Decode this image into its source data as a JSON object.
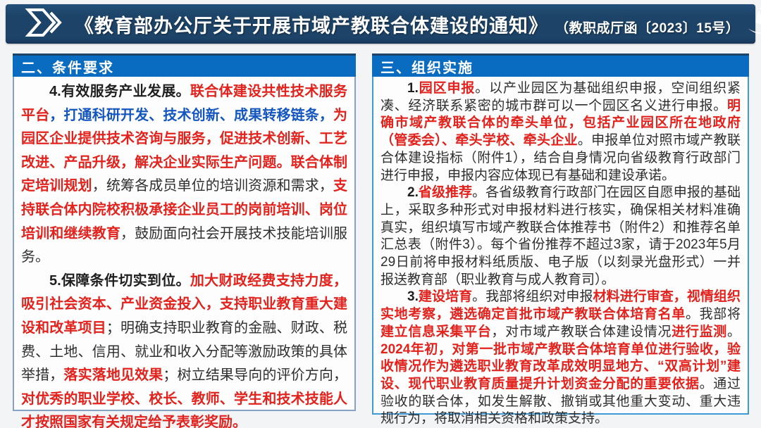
{
  "header": {
    "title": "《教育部办公厅关于开展市域产教联合体建设的通知》",
    "doc_number": "（教职成厅函〔2023〕15号）"
  },
  "colors": {
    "topbar_navy": "#1d4468",
    "panel_header_blue": "#0a6cc0",
    "highlight_red": "#e2231d",
    "highlight_blue": "#1456c0",
    "body_text": "#2e2e2e",
    "left_border": "#86a2c4",
    "right_border": "#3f9ad6"
  },
  "icons": {
    "left": "double-chevron-arrow-icon",
    "right": "swoosh-star-logo-icon"
  },
  "left_panel": {
    "header": "二、条件要求",
    "paragraphs": [
      [
        {
          "text": "4.有效服务产业发展。",
          "style": "black-bold"
        },
        {
          "text": "联合体建设共性技术服务平台",
          "style": "red"
        },
        {
          "text": "，打通科研开发、技术创新、成果转移链条，",
          "style": "blue"
        },
        {
          "text": "为园区企业提供技术咨询与服务，促进技术创新、工艺改进、产品升级，解决企业实际生产问题。联合体制定培训规划",
          "style": "red"
        },
        {
          "text": "，统筹各成员单位的培训资源和需求，",
          "style": "black"
        },
        {
          "text": "支持联合体内院校积极承接企业员工的岗前培训、岗位培训和继续教育",
          "style": "red"
        },
        {
          "text": "，鼓励面向社会开展技术技能培训服务。",
          "style": "black"
        }
      ],
      [
        {
          "text": "5.保障条件切实到位。",
          "style": "black-bold"
        },
        {
          "text": "加大财政经费支持力度，吸引社会资本、产业资金投入，支持职业教育重大建设和改革项目",
          "style": "red"
        },
        {
          "text": "；明确支持职业教育的金融、财政、税费、土地、信用、就业和收入分配等激励政策的具体举措，",
          "style": "black"
        },
        {
          "text": "落实落地见效果",
          "style": "red"
        },
        {
          "text": "；树立结果导向的评价方向，",
          "style": "black"
        },
        {
          "text": "对优秀的职业学校、校长、教师、学生和技术技能人才按照国家有关规定给予表彰奖励。",
          "style": "red"
        }
      ]
    ]
  },
  "right_panel": {
    "header": "三、组织实施",
    "paragraphs": [
      [
        {
          "text": "1.",
          "style": "black-bold"
        },
        {
          "text": "园区申报",
          "style": "red"
        },
        {
          "text": "。以产业园区为基础组织申报，空间组织紧凑、经济联系紧密的城市群可以一个园区名义进行申报。",
          "style": "black"
        },
        {
          "text": "明确市域产教联合体的牵头单位，包括产业园区所在地政府（管委会）、牵头学校、牵头企业",
          "style": "red"
        },
        {
          "text": "。申报单位对照市域产教联合体建设指标（附件1），结合自身情况向省级教育行政部门进行申报，申报内容应体现已有基础和建设承诺。",
          "style": "black"
        }
      ],
      [
        {
          "text": "2.",
          "style": "black-bold"
        },
        {
          "text": "省级推荐",
          "style": "red"
        },
        {
          "text": "。各省级教育行政部门在园区自愿申报的基础上，采取多种形式对申报材料进行核实，确保相关材料准确真实，组织填写市域产教联合体推荐书（附件2）和推荐名单汇总表（附件3）。每个省份推荐不超过3家，请于2023年5月29日前将申报材料纸质版、电子版（以刻录光盘形式）一并报送教育部（职业教育与成人教育司）。",
          "style": "black"
        }
      ],
      [
        {
          "text": "3.",
          "style": "black-bold"
        },
        {
          "text": "建设培育",
          "style": "red"
        },
        {
          "text": "。我部将组织对申报",
          "style": "black"
        },
        {
          "text": "材料进行审查，视情组织实地考察，遴选确定首批市域产教联合体培育名单",
          "style": "red"
        },
        {
          "text": "。我部将",
          "style": "black"
        },
        {
          "text": "建立信息采集平台",
          "style": "red"
        },
        {
          "text": "，对市域产教联合体建设情况",
          "style": "black"
        },
        {
          "text": "进行监测",
          "style": "red"
        },
        {
          "text": "。",
          "style": "black"
        },
        {
          "text": "2024年初，对第一批市域产教联合体培育单位进行验收，验收情况作为遴选职业教育改革成效明显地方、“双高计划”建设、现代职业教育质量提升计划资金分配的重要依据",
          "style": "red"
        },
        {
          "text": "。通过验收的联合体，如发生解散、撤销或其他重大变动、重大违规行为，将取消相关资格和政策支持。",
          "style": "black"
        }
      ]
    ]
  }
}
